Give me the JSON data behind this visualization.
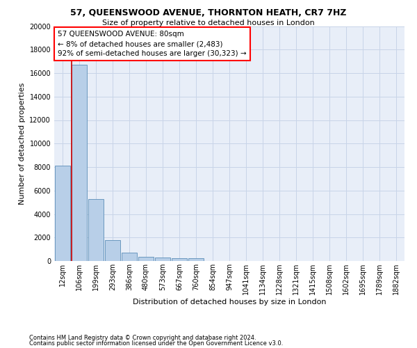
{
  "title": "57, QUEENSWOOD AVENUE, THORNTON HEATH, CR7 7HZ",
  "subtitle": "Size of property relative to detached houses in London",
  "xlabel": "Distribution of detached houses by size in London",
  "ylabel": "Number of detached properties",
  "bar_categories": [
    "12sqm",
    "106sqm",
    "199sqm",
    "293sqm",
    "386sqm",
    "480sqm",
    "573sqm",
    "667sqm",
    "760sqm",
    "854sqm",
    "947sqm",
    "1041sqm",
    "1134sqm",
    "1228sqm",
    "1321sqm",
    "1415sqm",
    "1508sqm",
    "1602sqm",
    "1695sqm",
    "1789sqm",
    "1882sqm"
  ],
  "bar_values": [
    8100,
    16700,
    5300,
    1750,
    700,
    380,
    280,
    210,
    210,
    0,
    0,
    0,
    0,
    0,
    0,
    0,
    0,
    0,
    0,
    0,
    0
  ],
  "bar_color": "#b8cfe8",
  "bar_edge_color": "#5b8db8",
  "marker_color": "#cc0000",
  "ylim": [
    0,
    20000
  ],
  "yticks": [
    0,
    2000,
    4000,
    6000,
    8000,
    10000,
    12000,
    14000,
    16000,
    18000,
    20000
  ],
  "annotation_title": "57 QUEENSWOOD AVENUE: 80sqm",
  "annotation_line1": "← 8% of detached houses are smaller (2,483)",
  "annotation_line2": "92% of semi-detached houses are larger (30,323) →",
  "footer_line1": "Contains HM Land Registry data © Crown copyright and database right 2024.",
  "footer_line2": "Contains public sector information licensed under the Open Government Licence v3.0.",
  "grid_color": "#c8d4e8",
  "background_color": "#e8eef8",
  "title_fontsize": 9,
  "subtitle_fontsize": 8,
  "xlabel_fontsize": 8,
  "ylabel_fontsize": 8,
  "tick_fontsize": 7,
  "ann_fontsize": 7.5,
  "footer_fontsize": 6
}
